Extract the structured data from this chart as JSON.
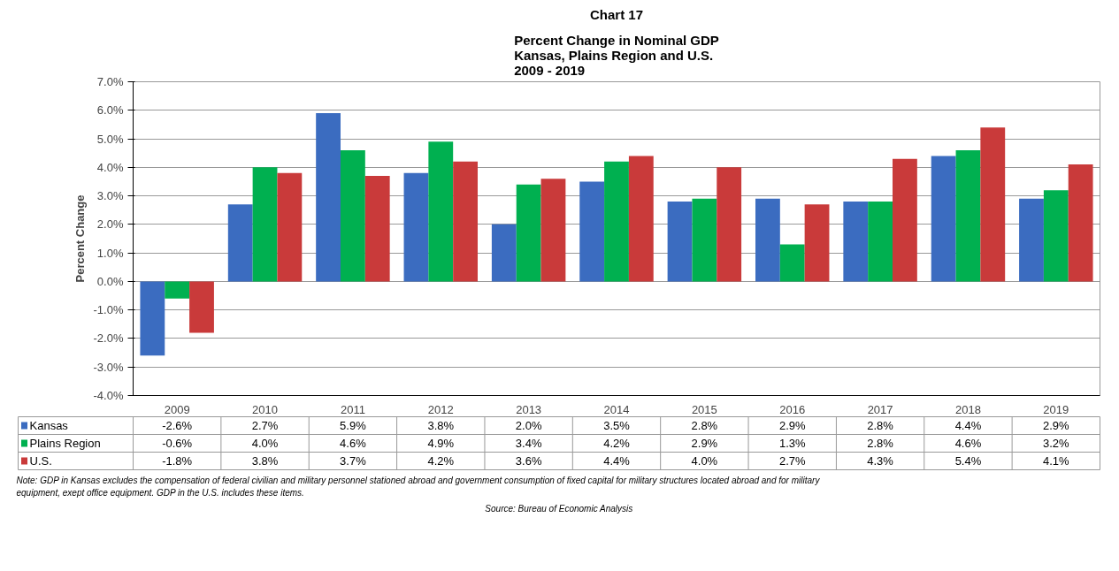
{
  "chart_data": {
    "type": "bar",
    "title": "Chart 17",
    "subtitle": "Percent Change in Nominal GDP\nKansas, Plains Region and U.S.\n2009 - 2019",
    "ylabel": "Percent Change",
    "categories": [
      "2009",
      "2010",
      "2011",
      "2012",
      "2013",
      "2014",
      "2015",
      "2016",
      "2017",
      "2018",
      "2019"
    ],
    "series": [
      {
        "name": "Kansas",
        "color": "#3b6cc0",
        "values": [
          -2.6,
          2.7,
          5.9,
          3.8,
          2.0,
          3.5,
          2.8,
          2.9,
          2.8,
          4.4,
          2.9
        ],
        "value_labels": [
          "-2.6%",
          "2.7%",
          "5.9%",
          "3.8%",
          "2.0%",
          "3.5%",
          "2.8%",
          "2.9%",
          "2.8%",
          "4.4%",
          "2.9%"
        ]
      },
      {
        "name": "Plains Region",
        "color": "#00b050",
        "values": [
          -0.6,
          4.0,
          4.6,
          4.9,
          3.4,
          4.2,
          2.9,
          1.3,
          2.8,
          4.6,
          3.2
        ],
        "value_labels": [
          "-0.6%",
          "4.0%",
          "4.6%",
          "4.9%",
          "3.4%",
          "4.2%",
          "2.9%",
          "1.3%",
          "2.8%",
          "4.6%",
          "3.2%"
        ]
      },
      {
        "name": "U.S.",
        "color": "#c93a3a",
        "values": [
          -1.8,
          3.8,
          3.7,
          4.2,
          3.6,
          4.4,
          4.0,
          2.7,
          4.3,
          5.4,
          4.1
        ],
        "value_labels": [
          "-1.8%",
          "3.8%",
          "3.7%",
          "4.2%",
          "3.6%",
          "4.4%",
          "4.0%",
          "2.7%",
          "4.3%",
          "5.4%",
          "4.1%"
        ]
      }
    ],
    "ylim": [
      -4,
      7
    ],
    "yticks": [
      {
        "value": -4,
        "label": "-4.0%"
      },
      {
        "value": -3,
        "label": "-3.0%"
      },
      {
        "value": -2,
        "label": "-2.0%"
      },
      {
        "value": -1,
        "label": "-1.0%"
      },
      {
        "value": 0,
        "label": "0.0%"
      },
      {
        "value": 1,
        "label": "1.0%"
      },
      {
        "value": 2,
        "label": "2.0%"
      },
      {
        "value": 3,
        "label": "3.0%"
      },
      {
        "value": 4,
        "label": "4.0%"
      },
      {
        "value": 5,
        "label": "5.0%"
      },
      {
        "value": 6,
        "label": "6.0%"
      },
      {
        "value": 7,
        "label": "7.0%"
      }
    ],
    "grid": "y",
    "legend": "bottom",
    "annotations": [
      "Note:  GDP  in Kansas excludes the compensation of federal civilian and military personnel stationed abroad and government consumption of fixed capital for military structures located abroad and for military equipment, exept office equipment.  GDP in the U.S. includes these items.",
      "Source: Bureau of Economic Analysis"
    ]
  }
}
